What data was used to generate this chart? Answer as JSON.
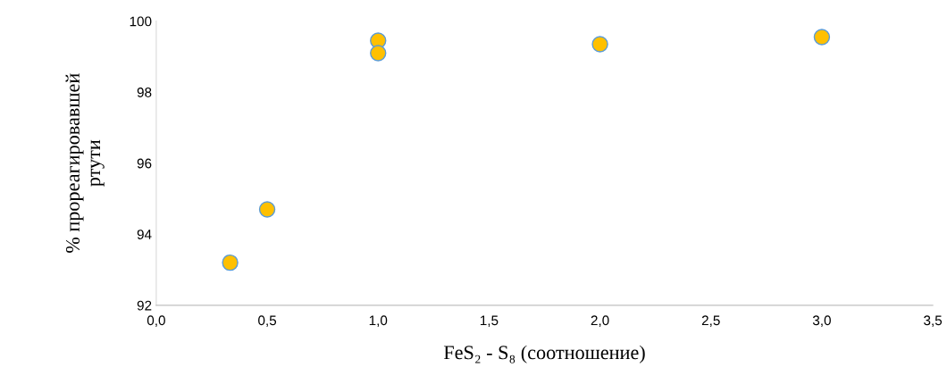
{
  "chart_data": {
    "type": "scatter",
    "xlabel": "FeS₂ - S₈ (соотношение)",
    "ylabel": "% прореагировавшей\nртути",
    "series": [
      {
        "color": "#ffc000",
        "x": [
          0.333,
          0.5,
          1.0,
          1.0,
          2.0,
          3.0
        ],
        "values": [
          93.2,
          94.7,
          99.45,
          99.1,
          99.35,
          99.55
        ]
      }
    ],
    "xlim": [
      0,
      3.5
    ],
    "xticks": [
      {
        "value": 0,
        "label": "0,0"
      },
      {
        "value": 0.5,
        "label": "0,5"
      },
      {
        "value": 1,
        "label": "1,0"
      },
      {
        "value": 1.5,
        "label": "1,5"
      },
      {
        "value": 2,
        "label": "2,0"
      },
      {
        "value": 2.5,
        "label": "2,5"
      },
      {
        "value": 3,
        "label": "3,0"
      },
      {
        "value": 3.5,
        "label": "3,5"
      }
    ],
    "ylim": [
      92,
      100
    ],
    "yticks": [
      92,
      94,
      96,
      98,
      100
    ],
    "grid": false,
    "marker": "circle",
    "legend": false
  }
}
